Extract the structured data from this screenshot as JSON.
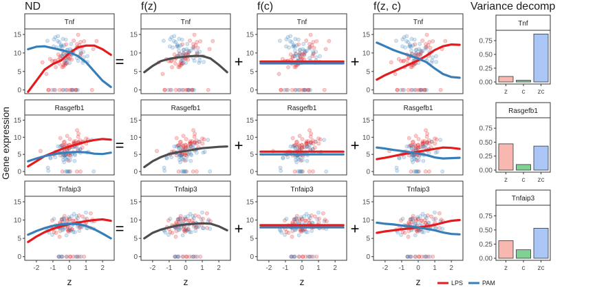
{
  "chart_data": {
    "type": "scatter",
    "column_titles": [
      "ND",
      "f(z)",
      "f(c)",
      "f(z, c)",
      "Variance decomp"
    ],
    "operators": [
      "=",
      "+",
      "+"
    ],
    "genes": [
      "Tnf",
      "Rasgefb1",
      "Tnfaip3"
    ],
    "ylabel": "Gene expression",
    "xlabel": "z",
    "x_ticks": [
      -2,
      -1,
      0,
      1,
      2
    ],
    "x_tick_labels": [
      "-2",
      "-1",
      "0",
      "1",
      "2"
    ],
    "xlim": [
      -2.7,
      2.7
    ],
    "y_ticks": [
      0,
      5,
      10,
      15
    ],
    "y_tick_labels": [
      "0",
      "5",
      "10",
      "15"
    ],
    "ylim": [
      -1,
      16.5
    ],
    "legend": [
      {
        "name": "LPS",
        "color": "#e41a1c"
      },
      {
        "name": "PAM",
        "color": "#377eb8"
      }
    ],
    "colors": {
      "LPS": "#e41a1c",
      "PAM": "#377eb8",
      "fz": "#4d4d4d"
    },
    "curve_x": [
      -2.5,
      -2,
      -1.5,
      -1,
      -0.5,
      0,
      0.5,
      1,
      1.5,
      2,
      2.5
    ],
    "panels": [
      {
        "gene": "Tnf",
        "nd": {
          "LPS": [
            -0.5,
            2.5,
            5.5,
            7.0,
            8.0,
            10.0,
            11.5,
            12.0,
            12.0,
            11.0,
            9.5
          ],
          "PAM": [
            11.0,
            11.7,
            11.8,
            11.3,
            10.8,
            10.2,
            9.2,
            7.5,
            5.0,
            2.5,
            0.8
          ]
        },
        "fz": [
          4.8,
          6.5,
          7.8,
          8.4,
          8.8,
          9.0,
          9.2,
          9.2,
          8.5,
          6.8,
          4.8
        ],
        "fc": {
          "LPS": 7.7,
          "PAM": 7.2
        },
        "fzc": {
          "LPS": [
            2.8,
            4.0,
            5.0,
            6.0,
            7.0,
            8.0,
            9.3,
            10.8,
            11.8,
            12.3,
            12.2
          ],
          "PAM": [
            12.8,
            11.8,
            10.8,
            10.0,
            9.3,
            8.5,
            7.5,
            5.8,
            4.3,
            3.5,
            3.3
          ]
        },
        "var": {
          "categories": [
            "z",
            "c",
            "zc"
          ],
          "values": [
            0.1,
            0.03,
            0.87
          ],
          "yticks": [
            "0.00",
            "0.25",
            "0.50",
            "0.75"
          ]
        }
      },
      {
        "gene": "Rasgefb1",
        "nd": {
          "LPS": [
            1.5,
            3.0,
            4.5,
            5.5,
            6.5,
            7.3,
            8.0,
            8.7,
            9.2,
            9.5,
            9.3
          ],
          "PAM": [
            3.0,
            3.8,
            4.5,
            5.0,
            5.4,
            5.6,
            5.7,
            5.6,
            5.2,
            5.1,
            5.5
          ]
        },
        "fz": [
          1.3,
          3.0,
          4.2,
          5.1,
          5.6,
          6.0,
          6.4,
          6.8,
          7.0,
          7.2,
          7.3
        ],
        "fc": {
          "LPS": 5.8,
          "PAM": 5.0
        },
        "fzc": {
          "LPS": [
            3.6,
            4.0,
            4.5,
            5.0,
            5.4,
            5.8,
            6.2,
            6.6,
            7.0,
            6.9,
            6.6
          ],
          "PAM": [
            7.0,
            6.7,
            6.3,
            6.0,
            5.6,
            5.3,
            4.8,
            4.1,
            3.8,
            3.9,
            4.0
          ]
        },
        "var": {
          "categories": [
            "z",
            "c",
            "zc"
          ],
          "values": [
            0.47,
            0.1,
            0.43
          ],
          "yticks": [
            "0.00",
            "0.25",
            "0.50",
            "0.75"
          ]
        }
      },
      {
        "gene": "Tnfaip3",
        "nd": {
          "LPS": [
            4.0,
            5.5,
            6.7,
            7.6,
            8.3,
            8.9,
            9.3,
            9.7,
            10.0,
            10.2,
            9.8
          ],
          "PAM": [
            6.0,
            7.0,
            7.8,
            8.4,
            8.8,
            9.0,
            8.9,
            8.4,
            7.5,
            6.3,
            5.0
          ]
        },
        "fz": [
          5.0,
          6.5,
          7.4,
          8.0,
          8.5,
          8.8,
          9.0,
          9.1,
          9.0,
          8.3,
          7.2
        ],
        "fc": {
          "LPS": 8.6,
          "PAM": 8.0
        },
        "fzc": {
          "LPS": [
            6.5,
            6.9,
            7.2,
            7.5,
            7.7,
            8.0,
            8.3,
            8.7,
            9.3,
            9.8,
            10.0
          ],
          "PAM": [
            9.3,
            9.0,
            8.8,
            8.5,
            8.3,
            8.0,
            7.6,
            7.2,
            6.6,
            6.2,
            6.1
          ]
        },
        "var": {
          "categories": [
            "z",
            "c",
            "zc"
          ],
          "values": [
            0.31,
            0.15,
            0.53
          ],
          "yticks": [
            "0.00",
            "0.25",
            "0.50",
            "0.75"
          ]
        }
      }
    ],
    "var_bar_colors": [
      "#f8b7b1",
      "#7fd293",
      "#a9c6f7"
    ],
    "var_ylim": [
      0,
      0.9
    ]
  }
}
